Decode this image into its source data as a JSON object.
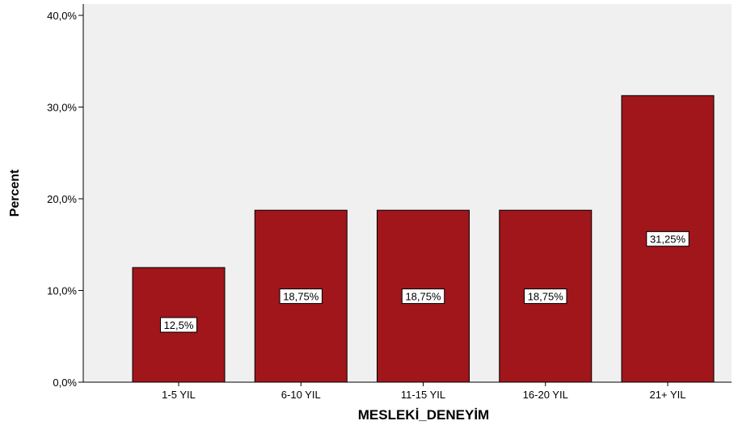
{
  "chart_data": {
    "type": "bar",
    "title": "",
    "xlabel": "MESLEKİ_DENEYİM",
    "ylabel": "Percent",
    "categories": [
      "1-5 YIL",
      "6-10 YIL",
      "11-15 YIL",
      "16-20 YIL",
      "21+ YIL"
    ],
    "values": [
      12.5,
      18.75,
      18.75,
      18.75,
      31.25
    ],
    "data_labels": [
      "12,5%",
      "18,75%",
      "18,75%",
      "18,75%",
      "31,25%"
    ],
    "ylim": [
      0,
      40
    ],
    "yticks": [
      0,
      10,
      20,
      30,
      40
    ],
    "ytick_labels": [
      "0,0%",
      "10,0%",
      "20,0%",
      "30,0%",
      "40,0%"
    ],
    "grid": false,
    "legend": "none",
    "colors": {
      "bar": "#a0161b",
      "bar_border": "#000000",
      "plot_background": "#f0f0f0",
      "page_background": "#ffffff"
    }
  }
}
